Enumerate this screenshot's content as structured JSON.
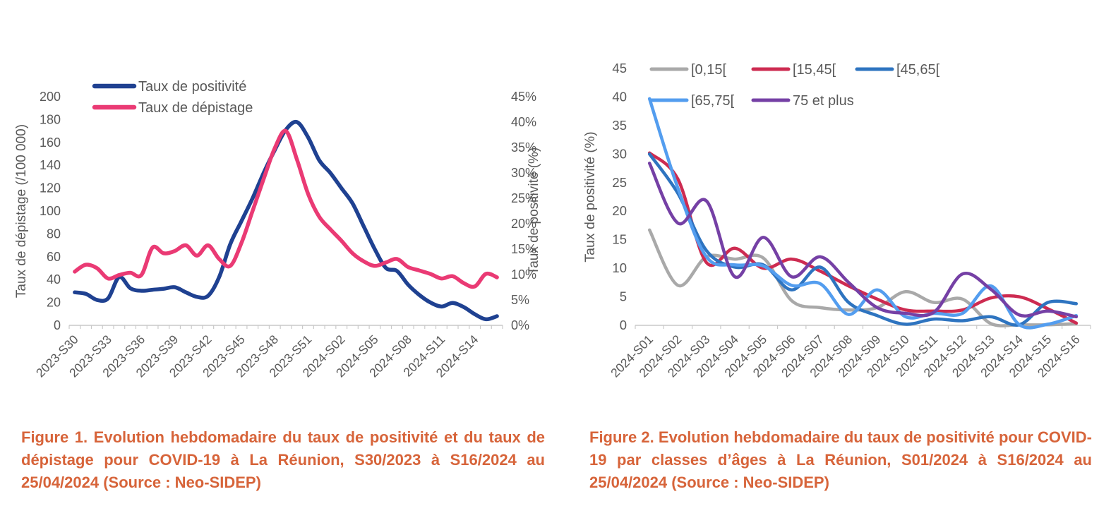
{
  "captions": {
    "figure1": "Figure 1. Evolution hebdomadaire du taux de positivité et du taux de dépistage pour COVID-19 à La Réunion, S30/2023 à S16/2024 au 25/04/2024 (Source : Neo-SIDEP)",
    "figure2": "Figure 2. Evolution hebdomadaire du taux de positivité pour COVID-19 par classes d’âges à La Réunion, S01/2024 à S16/2024 au 25/04/2024 (Source : Neo-SIDEP)"
  },
  "colors": {
    "caption": "#D7643A",
    "text": "#595959",
    "axis_line": "#D6D6D6",
    "tick": "#C9C9C9",
    "fig1_positivite": "#1F4191",
    "fig1_depistage": "#EA3A74",
    "fig2_0_15": "#A9A9A9",
    "fig2_15_45": "#CD2B51",
    "fig2_45_65": "#2E74C0",
    "fig2_65_75": "#539DEF",
    "fig2_75_plus": "#7540A5"
  },
  "chart_data": [
    {
      "type": "line",
      "title": "",
      "categories": [
        "2023-S30",
        "2023-S31",
        "2023-S32",
        "2023-S33",
        "2023-S34",
        "2023-S35",
        "2023-S36",
        "2023-S37",
        "2023-S38",
        "2023-S39",
        "2023-S40",
        "2023-S41",
        "2023-S42",
        "2023-S43",
        "2023-S44",
        "2023-S45",
        "2023-S46",
        "2023-S47",
        "2023-S48",
        "2023-S49",
        "2023-S50",
        "2023-S51",
        "2023-S52",
        "2024-S01",
        "2024-S02",
        "2024-S03",
        "2024-S04",
        "2024-S05",
        "2024-S06",
        "2024-S07",
        "2024-S08",
        "2024-S09",
        "2024-S10",
        "2024-S11",
        "2024-S12",
        "2024-S13",
        "2024-S14",
        "2024-S15",
        "2024-S16"
      ],
      "x_label_every": 3,
      "x_tick_labels_shown": [
        "2023-S30",
        "2023-S33",
        "2023-S36",
        "2023-S39",
        "2023-S42",
        "2023-S45",
        "2023-S48",
        "2023-S51",
        "2024-S02",
        "2024-S05",
        "2024-S08",
        "2024-S11",
        "2024-S14"
      ],
      "y_left": {
        "title": "Taux de dépistage (/100 000)",
        "min": 0,
        "max": 200,
        "step": 20,
        "suffix": ""
      },
      "y_right": {
        "title": "Taux de positivité (%)",
        "min": 0,
        "max": 45,
        "step": 5,
        "suffix": "%"
      },
      "grid": false,
      "legend_position": "top-left-stacked",
      "series": [
        {
          "name": "Taux de positivité",
          "axis": "right",
          "color": "#1F4191",
          "values": [
            6.5,
            6.2,
            5.0,
            5.3,
            9.5,
            7.3,
            6.8,
            7.0,
            7.2,
            7.5,
            6.5,
            5.6,
            5.8,
            9.5,
            16.0,
            20.5,
            25.0,
            30.0,
            34.5,
            38.5,
            40.0,
            37.0,
            32.5,
            30.0,
            27.0,
            24.0,
            19.5,
            15.0,
            11.3,
            10.7,
            8.0,
            6.0,
            4.5,
            3.7,
            4.4,
            3.6,
            2.2,
            1.2,
            1.8
          ]
        },
        {
          "name": "Taux de dépistage",
          "axis": "left",
          "color": "#EA3A74",
          "values": [
            47,
            53,
            50,
            41,
            44,
            46,
            44,
            68,
            63,
            65,
            70,
            61,
            70,
            58,
            52,
            72,
            100,
            128,
            155,
            170,
            145,
            115,
            95,
            84,
            74,
            63,
            56,
            52,
            55,
            58,
            51,
            48,
            45,
            41,
            43,
            37,
            34,
            45,
            42
          ]
        }
      ]
    },
    {
      "type": "line",
      "title": "",
      "categories": [
        "2024-S01",
        "2024-S02",
        "2024-S03",
        "2024-S04",
        "2024-S05",
        "2024-S06",
        "2024-S07",
        "2024-S08",
        "2024-S09",
        "2024-S10",
        "2024-S11",
        "2024-S12",
        "2024-S13",
        "2024-S14",
        "2024-S15",
        "2024-S16"
      ],
      "x_label_every": 1,
      "y_left": {
        "title": "Taux de positivité (%)",
        "min": 0,
        "max": 45,
        "step": 5,
        "suffix": ""
      },
      "grid": false,
      "legend_position": "top-two-rows",
      "series": [
        {
          "name": "[0,15[",
          "axis": "left",
          "color": "#A9A9A9",
          "values": [
            16.7,
            7.0,
            12.0,
            11.6,
            11.8,
            4.3,
            3.1,
            2.7,
            3.1,
            5.9,
            4.0,
            4.6,
            0.3,
            0.1,
            0.1,
            0.3
          ]
        },
        {
          "name": "[15,45[",
          "axis": "left",
          "color": "#CD2B51",
          "values": [
            30.2,
            25.6,
            11.0,
            13.5,
            10.0,
            11.6,
            9.5,
            6.9,
            4.6,
            2.7,
            2.5,
            2.7,
            4.8,
            5.0,
            2.9,
            0.4
          ]
        },
        {
          "name": "[45,65[",
          "axis": "left",
          "color": "#2E74C0",
          "values": [
            30.0,
            23.1,
            13.1,
            10.2,
            10.6,
            6.2,
            10.2,
            4.0,
            1.7,
            0.2,
            1.1,
            0.8,
            1.5,
            0.1,
            4.0,
            3.8
          ]
        },
        {
          "name": "[65,75[",
          "axis": "left",
          "color": "#539DEF",
          "values": [
            39.7,
            24.0,
            12.0,
            10.6,
            10.4,
            7.0,
            7.3,
            1.9,
            6.2,
            1.5,
            2.1,
            2.1,
            6.9,
            0.1,
            0.2,
            1.7
          ]
        },
        {
          "name": "75 et plus",
          "axis": "left",
          "color": "#7540A5",
          "values": [
            28.4,
            17.9,
            21.8,
            8.5,
            15.4,
            8.5,
            12.0,
            7.5,
            3.1,
            2.1,
            2.3,
            9.0,
            6.3,
            1.8,
            2.5,
            1.5
          ]
        }
      ]
    }
  ]
}
